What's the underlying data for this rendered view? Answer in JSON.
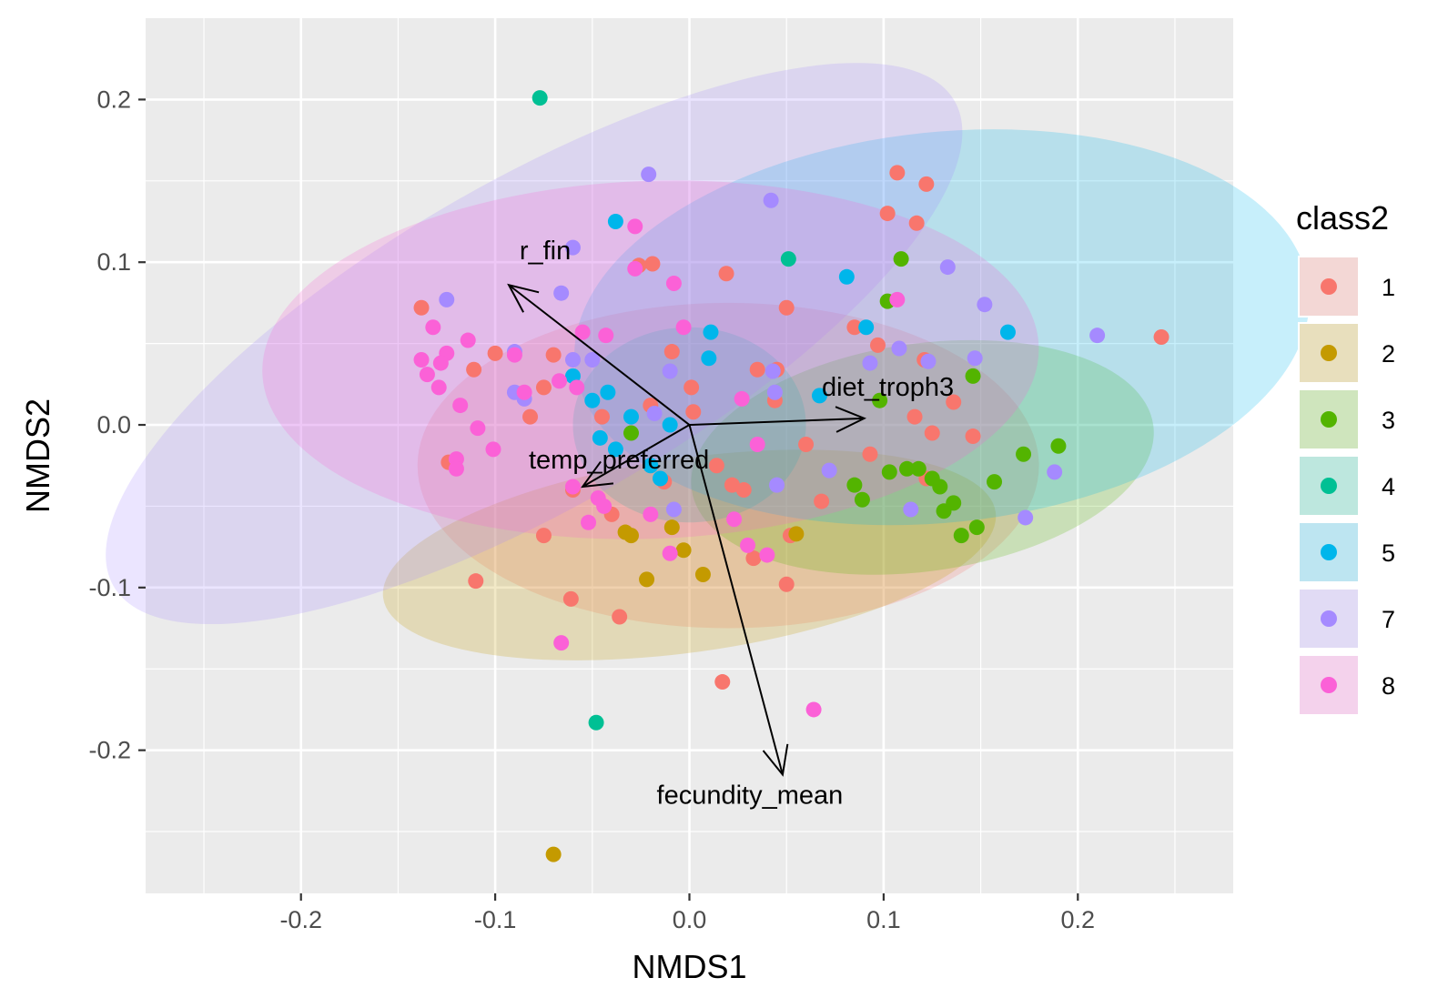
{
  "chart_data": {
    "type": "scatter",
    "xlabel": "NMDS1",
    "ylabel": "NMDS2",
    "xlim": [
      -0.28,
      0.28
    ],
    "ylim": [
      -0.288,
      0.25
    ],
    "xticks": [
      -0.2,
      -0.1,
      0.0,
      0.1,
      0.2
    ],
    "xtick_labels": [
      "-0.2",
      "-0.1",
      "0.0",
      "0.1",
      "0.2"
    ],
    "yticks": [
      -0.2,
      -0.1,
      0.0,
      0.1,
      0.2
    ],
    "ytick_labels": [
      "-0.2",
      "-0.1",
      "0.0",
      "0.1",
      "0.2"
    ],
    "grid": true,
    "legend": {
      "title": "class2",
      "position": "right",
      "items": [
        {
          "label": "1",
          "color": "#F8766D"
        },
        {
          "label": "2",
          "color": "#C49A00"
        },
        {
          "label": "3",
          "color": "#53B400"
        },
        {
          "label": "4",
          "color": "#00C094"
        },
        {
          "label": "5",
          "color": "#00B6EB"
        },
        {
          "label": "7",
          "color": "#A58AFF"
        },
        {
          "label": "8",
          "color": "#FB61D7"
        }
      ]
    },
    "ellipses": [
      {
        "class": "1",
        "cx": 0.02,
        "cy": -0.025,
        "rx": 0.16,
        "ry": 0.1,
        "angle": 0
      },
      {
        "class": "2",
        "cx": 0.0,
        "cy": -0.08,
        "rx": 0.05,
        "ry": 0.19,
        "angle": 98
      },
      {
        "class": "3",
        "cx": 0.12,
        "cy": -0.02,
        "rx": 0.12,
        "ry": 0.07,
        "angle": 8
      },
      {
        "class": "4",
        "cx": 0.0,
        "cy": 0.0,
        "rx": 0.06,
        "ry": 0.06,
        "angle": 0
      },
      {
        "class": "5",
        "cx": 0.13,
        "cy": 0.06,
        "rx": 0.19,
        "ry": 0.12,
        "angle": 6
      },
      {
        "class": "7",
        "cx": -0.08,
        "cy": 0.05,
        "rx": 0.25,
        "ry": 0.1,
        "angle": 30
      },
      {
        "class": "8",
        "cx": -0.02,
        "cy": 0.04,
        "rx": 0.2,
        "ry": 0.11,
        "angle": 2
      }
    ],
    "vectors": [
      {
        "label": "r_fin",
        "x": -0.093,
        "y": 0.086
      },
      {
        "label": "diet_troph3",
        "x": 0.09,
        "y": 0.004
      },
      {
        "label": "temp_preferred",
        "x": -0.055,
        "y": -0.038
      },
      {
        "label": "fecundity_mean",
        "x": 0.048,
        "y": -0.215
      }
    ],
    "series": [
      {
        "name": "1",
        "points": [
          [
            0.107,
            0.155
          ],
          [
            0.122,
            0.148
          ],
          [
            0.102,
            0.13
          ],
          [
            0.117,
            0.124
          ],
          [
            0.243,
            0.054
          ],
          [
            -0.138,
            0.072
          ],
          [
            -0.019,
            0.099
          ],
          [
            -0.026,
            0.098
          ],
          [
            0.019,
            0.093
          ],
          [
            0.05,
            0.072
          ],
          [
            0.085,
            0.06
          ],
          [
            0.097,
            0.049
          ],
          [
            0.121,
            0.04
          ],
          [
            0.136,
            0.014
          ],
          [
            0.146,
            -0.007
          ],
          [
            0.122,
            -0.033
          ],
          [
            0.068,
            -0.047
          ],
          [
            0.052,
            -0.068
          ],
          [
            0.033,
            -0.082
          ],
          [
            0.05,
            -0.098
          ],
          [
            0.022,
            -0.037
          ],
          [
            0.028,
            -0.04
          ],
          [
            0.014,
            -0.025
          ],
          [
            -0.11,
            -0.096
          ],
          [
            -0.061,
            -0.107
          ],
          [
            -0.036,
            -0.118
          ],
          [
            0.017,
            -0.158
          ],
          [
            -0.075,
            -0.068
          ],
          [
            -0.06,
            -0.04
          ],
          [
            -0.082,
            0.005
          ],
          [
            -0.075,
            0.023
          ],
          [
            -0.1,
            0.044
          ],
          [
            -0.07,
            0.043
          ],
          [
            -0.009,
            0.045
          ],
          [
            0.001,
            0.023
          ],
          [
            0.045,
            0.034
          ],
          [
            0.035,
            0.034
          ],
          [
            -0.111,
            0.034
          ],
          [
            -0.124,
            -0.023
          ],
          [
            -0.045,
            0.005
          ],
          [
            -0.02,
            0.012
          ],
          [
            0.002,
            0.008
          ],
          [
            0.044,
            0.015
          ],
          [
            0.116,
            0.005
          ],
          [
            0.125,
            -0.005
          ],
          [
            0.093,
            -0.018
          ],
          [
            -0.013,
            -0.035
          ],
          [
            0.06,
            -0.012
          ],
          [
            -0.04,
            -0.055
          ]
        ]
      },
      {
        "name": "2",
        "points": [
          [
            -0.07,
            -0.264
          ],
          [
            -0.022,
            -0.095
          ],
          [
            -0.033,
            -0.066
          ],
          [
            -0.009,
            -0.063
          ],
          [
            -0.003,
            -0.077
          ],
          [
            0.007,
            -0.092
          ],
          [
            -0.03,
            -0.068
          ],
          [
            0.055,
            -0.067
          ]
        ]
      },
      {
        "name": "3",
        "points": [
          [
            0.109,
            0.102
          ],
          [
            0.102,
            0.076
          ],
          [
            0.146,
            0.03
          ],
          [
            0.098,
            0.015
          ],
          [
            0.19,
            -0.013
          ],
          [
            0.172,
            -0.018
          ],
          [
            0.157,
            -0.035
          ],
          [
            0.118,
            -0.027
          ],
          [
            0.125,
            -0.033
          ],
          [
            0.112,
            -0.027
          ],
          [
            0.129,
            -0.038
          ],
          [
            0.131,
            -0.053
          ],
          [
            0.136,
            -0.048
          ],
          [
            0.14,
            -0.068
          ],
          [
            0.148,
            -0.063
          ],
          [
            0.085,
            -0.037
          ],
          [
            0.089,
            -0.046
          ],
          [
            0.103,
            -0.029
          ],
          [
            -0.03,
            -0.005
          ]
        ]
      },
      {
        "name": "4",
        "points": [
          [
            -0.077,
            0.201
          ],
          [
            0.051,
            0.102
          ],
          [
            -0.048,
            -0.183
          ]
        ]
      },
      {
        "name": "5",
        "points": [
          [
            -0.038,
            0.125
          ],
          [
            0.081,
            0.091
          ],
          [
            0.091,
            0.06
          ],
          [
            0.164,
            0.057
          ],
          [
            0.067,
            0.018
          ],
          [
            0.011,
            0.057
          ],
          [
            0.01,
            0.041
          ],
          [
            -0.06,
            0.03
          ],
          [
            -0.05,
            0.015
          ],
          [
            -0.042,
            0.02
          ],
          [
            -0.03,
            0.005
          ],
          [
            -0.01,
            0.0
          ],
          [
            -0.046,
            -0.008
          ],
          [
            -0.038,
            -0.015
          ],
          [
            -0.02,
            -0.025
          ],
          [
            -0.015,
            -0.033
          ]
        ]
      },
      {
        "name": "7",
        "points": [
          [
            -0.021,
            0.154
          ],
          [
            0.042,
            0.138
          ],
          [
            -0.06,
            0.109
          ],
          [
            -0.125,
            0.077
          ],
          [
            -0.066,
            0.081
          ],
          [
            -0.09,
            0.045
          ],
          [
            -0.09,
            0.02
          ],
          [
            0.133,
            0.097
          ],
          [
            0.152,
            0.074
          ],
          [
            0.21,
            0.055
          ],
          [
            0.108,
            0.047
          ],
          [
            0.147,
            0.041
          ],
          [
            0.123,
            0.039
          ],
          [
            0.093,
            0.038
          ],
          [
            0.043,
            0.033
          ],
          [
            -0.01,
            0.033
          ],
          [
            -0.05,
            0.04
          ],
          [
            0.044,
            0.02
          ],
          [
            0.173,
            -0.057
          ],
          [
            0.188,
            -0.029
          ],
          [
            0.114,
            -0.052
          ],
          [
            0.045,
            -0.037
          ],
          [
            0.072,
            -0.028
          ],
          [
            -0.008,
            -0.052
          ],
          [
            -0.018,
            0.007
          ],
          [
            -0.085,
            0.016
          ],
          [
            -0.06,
            0.04
          ]
        ]
      },
      {
        "name": "8",
        "points": [
          [
            -0.028,
            0.122
          ],
          [
            0.107,
            0.077
          ],
          [
            -0.132,
            0.06
          ],
          [
            -0.114,
            0.052
          ],
          [
            -0.138,
            0.04
          ],
          [
            -0.125,
            0.044
          ],
          [
            -0.128,
            0.038
          ],
          [
            -0.135,
            0.031
          ],
          [
            -0.129,
            0.023
          ],
          [
            -0.118,
            0.012
          ],
          [
            -0.109,
            -0.002
          ],
          [
            -0.101,
            -0.015
          ],
          [
            -0.12,
            -0.021
          ],
          [
            -0.12,
            -0.027
          ],
          [
            -0.066,
            -0.134
          ],
          [
            0.064,
            -0.175
          ],
          [
            0.04,
            -0.08
          ],
          [
            0.03,
            -0.074
          ],
          [
            -0.01,
            -0.079
          ],
          [
            -0.003,
            0.06
          ],
          [
            -0.043,
            0.055
          ],
          [
            -0.055,
            0.057
          ],
          [
            -0.028,
            0.096
          ],
          [
            -0.008,
            0.087
          ],
          [
            -0.09,
            0.043
          ],
          [
            -0.085,
            0.02
          ],
          [
            -0.067,
            0.027
          ],
          [
            -0.058,
            0.023
          ],
          [
            -0.06,
            -0.038
          ],
          [
            -0.047,
            -0.045
          ],
          [
            -0.052,
            -0.06
          ],
          [
            -0.02,
            -0.055
          ],
          [
            -0.044,
            -0.05
          ],
          [
            0.023,
            -0.058
          ],
          [
            0.027,
            0.016
          ],
          [
            0.035,
            -0.012
          ]
        ]
      }
    ]
  }
}
